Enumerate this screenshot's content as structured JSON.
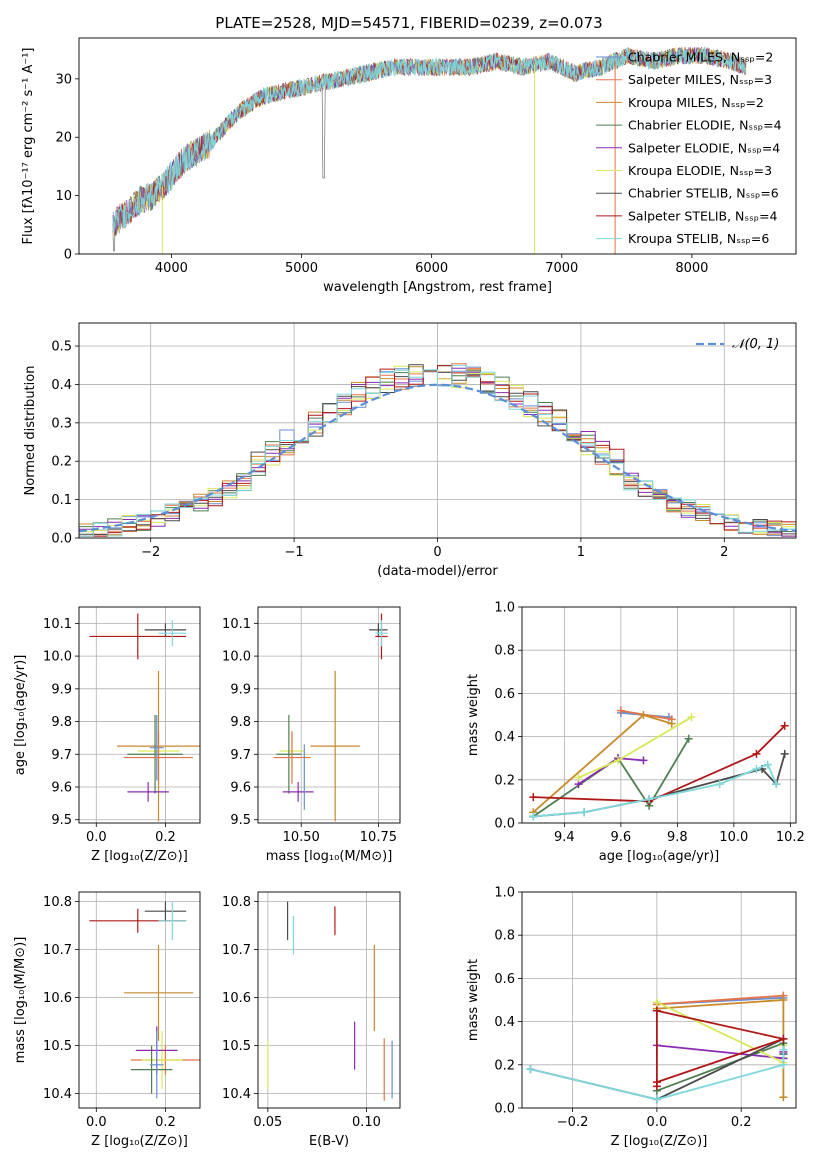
{
  "chart_data": [
    {
      "type": "line",
      "title": "PLATE=2528, MJD=54571, FIBERID=0239, z=0.073",
      "xlabel": "wavelength [Angstrom, rest frame]",
      "ylabel": "Flux [fλ10⁻¹⁷ erg cm⁻² s⁻¹ A⁻¹]",
      "xlim": [
        3290,
        8800
      ],
      "ylim": [
        0,
        37
      ],
      "xticks": [
        "4000",
        "5000",
        "6000",
        "7000",
        "8000"
      ],
      "yticks": [
        "0",
        "10",
        "20",
        "30"
      ],
      "grid": false,
      "legend": "upper-right",
      "legend_entries": [
        "Chabrier MILES, Nₛₛₚ=2",
        "Salpeter MILES, Nₛₛₚ=3",
        "Kroupa MILES, Nₛₛₚ=2",
        "Chabrier ELODIE, Nₛₛₚ=4",
        "Salpeter ELODIE, Nₛₛₚ=4",
        "Kroupa ELODIE, Nₛₛₚ=3",
        "Chabrier STELIB, Nₛₛₚ=6",
        "Salpeter STELIB, Nₛₛₚ=4",
        "Kroupa STELIB, Nₛₛₚ=6"
      ],
      "series_colors": [
        "#6a8fd1",
        "#e3744a",
        "#c98a2c",
        "#4e7f52",
        "#8b2bb0",
        "#d9e85a",
        "#4a4a4a",
        "#b01818",
        "#7fd8dc"
      ],
      "continuum": {
        "x": [
          3550,
          3650,
          3750,
          3850,
          3950,
          4050,
          4150,
          4300,
          4500,
          4700,
          4900,
          5100,
          5300,
          5500,
          5700,
          5900,
          6100,
          6300,
          6500,
          6700,
          6900,
          7100,
          7300,
          7500,
          7700,
          7900,
          8100,
          8300,
          8420
        ],
        "y": [
          5,
          7,
          9,
          10,
          12,
          15,
          17,
          19,
          24,
          27,
          28,
          29,
          30,
          31,
          32,
          32,
          32,
          32,
          33,
          32,
          33,
          31,
          32,
          34,
          33,
          34,
          34,
          33,
          32
        ]
      },
      "dips": [
        {
          "series": 5,
          "x": 3930,
          "y": 0
        },
        {
          "series": 5,
          "x": 6790,
          "y": 0
        },
        {
          "series": 1,
          "x": 7410,
          "y": 0
        }
      ]
    },
    {
      "type": "line",
      "xlabel": "(data-model)/error",
      "ylabel": "Normed distribution",
      "xlim": [
        -2.5,
        2.5
      ],
      "ylim": [
        0,
        0.56
      ],
      "xticks": [
        "−2",
        "−1",
        "0",
        "1",
        "2"
      ],
      "yticks": [
        "0.0",
        "0.1",
        "0.2",
        "0.3",
        "0.4",
        "0.5"
      ],
      "grid": true,
      "legend": "upper-right",
      "gaussian_label": "𝒩(0, 1)",
      "gaussian_color": "#5b8fd8",
      "bin_edges_start": -2.5,
      "bin_width": 0.1,
      "bin_count": 50
    },
    {
      "type": "scatter",
      "xlabel": "Z [log₁₀(Z/Z⊙)]",
      "ylabel": "age  [log₁₀(age/yr)]",
      "xlim": [
        -0.05,
        0.3
      ],
      "ylim": [
        9.49,
        10.15
      ],
      "xticks": [
        "0.0",
        "0.2"
      ],
      "yticks": [
        "9.5",
        "9.6",
        "9.7",
        "9.8",
        "9.9",
        "10.0",
        "10.1"
      ],
      "grid": true,
      "points": [
        {
          "x": 0.12,
          "y": 10.06,
          "xerr": 0.14,
          "yerr": 0.07,
          "c": 7
        },
        {
          "x": 0.2,
          "y": 10.08,
          "xerr": 0.06,
          "yerr": 0.02,
          "c": 6
        },
        {
          "x": 0.22,
          "y": 10.07,
          "xerr": 0.04,
          "yerr": 0.04,
          "c": 8
        },
        {
          "x": 0.18,
          "y": 9.725,
          "xerr": 0.12,
          "yerr": 0.23,
          "c": 2
        },
        {
          "x": 0.18,
          "y": 9.71,
          "xerr": 0.06,
          "yerr": 0.06,
          "c": 5
        },
        {
          "x": 0.17,
          "y": 9.7,
          "xerr": 0.08,
          "yerr": 0.12,
          "c": 3
        },
        {
          "x": 0.175,
          "y": 9.72,
          "xerr": 0.02,
          "yerr": 0.1,
          "c": 0
        },
        {
          "x": 0.18,
          "y": 9.69,
          "xerr": 0.1,
          "yerr": 0.08,
          "c": 1
        },
        {
          "x": 0.15,
          "y": 9.585,
          "xerr": 0.06,
          "yerr": 0.03,
          "c": 4
        }
      ]
    },
    {
      "type": "scatter",
      "xlabel": "mass [log₁₀(M/M⊙)]",
      "xlim": [
        10.36,
        10.82
      ],
      "ylim": [
        9.49,
        10.15
      ],
      "xticks": [
        "10.50",
        "10.75"
      ],
      "yticks": [
        "9.5",
        "9.6",
        "9.7",
        "9.8",
        "9.9",
        "10.0",
        "10.1"
      ],
      "grid": true,
      "points": [
        {
          "x": 10.76,
          "y": 10.06,
          "xerr": 0.02,
          "yerr": 0.07,
          "c": 7
        },
        {
          "x": 10.75,
          "y": 10.08,
          "xerr": 0.03,
          "yerr": 0.02,
          "c": 6
        },
        {
          "x": 10.76,
          "y": 10.07,
          "xerr": 0.02,
          "yerr": 0.04,
          "c": 8
        },
        {
          "x": 10.61,
          "y": 9.725,
          "xerr": 0.08,
          "yerr": 0.23,
          "c": 2
        },
        {
          "x": 10.47,
          "y": 9.71,
          "xerr": 0.04,
          "yerr": 0.06,
          "c": 5
        },
        {
          "x": 10.46,
          "y": 9.7,
          "xerr": 0.04,
          "yerr": 0.12,
          "c": 3
        },
        {
          "x": 10.47,
          "y": 9.69,
          "xerr": 0.06,
          "yerr": 0.08,
          "c": 1
        },
        {
          "x": 10.49,
          "y": 9.585,
          "xerr": 0.05,
          "yerr": 0.03,
          "c": 4
        },
        {
          "x": 10.51,
          "y": 9.63,
          "xerr": 0.0,
          "yerr": 0.1,
          "c": 0
        }
      ]
    },
    {
      "type": "line",
      "xlabel": "age  [log₁₀(age/yr)]",
      "ylabel": "mass weight",
      "xlim": [
        9.25,
        10.22
      ],
      "ylim": [
        0,
        1.0
      ],
      "xticks": [
        "9.4",
        "9.6",
        "9.8",
        "10.0",
        "10.2"
      ],
      "yticks": [
        "0.0",
        "0.2",
        "0.4",
        "0.6",
        "0.8",
        "1.0"
      ],
      "grid": true,
      "series": [
        {
          "c": 0,
          "x": [
            9.6,
            9.77
          ],
          "y": [
            0.51,
            0.49
          ]
        },
        {
          "c": 1,
          "x": [
            9.6,
            9.78
          ],
          "y": [
            0.52,
            0.48
          ]
        },
        {
          "c": 2,
          "x": [
            9.29,
            9.68,
            9.78
          ],
          "y": [
            0.05,
            0.5,
            0.46
          ]
        },
        {
          "c": 3,
          "x": [
            9.29,
            9.59,
            9.7,
            9.84
          ],
          "y": [
            0.03,
            0.3,
            0.08,
            0.39
          ]
        },
        {
          "c": 4,
          "x": [
            9.45,
            9.59,
            9.68
          ],
          "y": [
            0.18,
            0.3,
            0.29
          ]
        },
        {
          "c": 5,
          "x": [
            9.45,
            9.59,
            9.85
          ],
          "y": [
            0.21,
            0.29,
            0.49
          ]
        },
        {
          "c": 6,
          "x": [
            9.29,
            9.47,
            9.7,
            10.1,
            10.15,
            10.18
          ],
          "y": [
            0.03,
            0.05,
            0.11,
            0.25,
            0.18,
            0.32
          ]
        },
        {
          "c": 7,
          "x": [
            9.29,
            9.7,
            10.08,
            10.18
          ],
          "y": [
            0.12,
            0.1,
            0.32,
            0.45
          ]
        },
        {
          "c": 8,
          "x": [
            9.29,
            9.47,
            9.7,
            9.95,
            10.08,
            10.12,
            10.15
          ],
          "y": [
            0.03,
            0.05,
            0.11,
            0.18,
            0.25,
            0.27,
            0.18
          ]
        }
      ]
    },
    {
      "type": "scatter",
      "xlabel": "Z [log₁₀(Z/Z⊙)]",
      "ylabel": "mass [log₁₀(M/M⊙)]",
      "xlim": [
        -0.05,
        0.3
      ],
      "ylim": [
        10.37,
        10.82
      ],
      "xticks": [
        "0.0",
        "0.2"
      ],
      "yticks": [
        "10.4",
        "10.5",
        "10.6",
        "10.7",
        "10.8"
      ],
      "grid": true,
      "points": [
        {
          "x": 0.12,
          "y": 10.76,
          "xerr": 0.14,
          "yerr": 0.025,
          "c": 7
        },
        {
          "x": 0.2,
          "y": 10.78,
          "xerr": 0.06,
          "yerr": 0.02,
          "c": 6
        },
        {
          "x": 0.22,
          "y": 10.76,
          "xerr": 0.04,
          "yerr": 0.04,
          "c": 8
        },
        {
          "x": 0.18,
          "y": 10.61,
          "xerr": 0.1,
          "yerr": 0.1,
          "c": 2
        },
        {
          "x": 0.2,
          "y": 10.47,
          "xerr": 0.1,
          "yerr": 0.03,
          "c": 1
        },
        {
          "x": 0.19,
          "y": 10.47,
          "xerr": 0.06,
          "yerr": 0.06,
          "c": 5
        },
        {
          "x": 0.16,
          "y": 10.45,
          "xerr": 0.06,
          "yerr": 0.05,
          "c": 3
        },
        {
          "x": 0.175,
          "y": 10.49,
          "xerr": 0.06,
          "yerr": 0.05,
          "c": 4
        },
        {
          "x": 0.175,
          "y": 10.46,
          "xerr": 0.02,
          "yerr": 0.07,
          "c": 0
        }
      ]
    },
    {
      "type": "scatter",
      "xlabel": "E(B-V)",
      "xlim": [
        0.045,
        0.117
      ],
      "ylim": [
        10.37,
        10.82
      ],
      "xticks": [
        "0.05",
        "0.10"
      ],
      "yticks": [
        "10.4",
        "10.5",
        "10.6",
        "10.7",
        "10.8"
      ],
      "grid": true,
      "points": [
        {
          "x": 0.05,
          "y": 10.46,
          "xerr": 0,
          "yerr": 0.05,
          "c": 5
        },
        {
          "x": 0.06,
          "y": 10.76,
          "xerr": 0,
          "yerr": 0.04,
          "c": 6
        },
        {
          "x": 0.063,
          "y": 10.73,
          "xerr": 0,
          "yerr": 0.04,
          "c": 8
        },
        {
          "x": 0.084,
          "y": 10.76,
          "xerr": 0,
          "yerr": 0.03,
          "c": 7
        },
        {
          "x": 0.094,
          "y": 10.5,
          "xerr": 0,
          "yerr": 0.05,
          "c": 4
        },
        {
          "x": 0.104,
          "y": 10.62,
          "xerr": 0,
          "yerr": 0.09,
          "c": 2
        },
        {
          "x": 0.109,
          "y": 10.45,
          "xerr": 0,
          "yerr": 0.065,
          "c": 1
        },
        {
          "x": 0.113,
          "y": 10.45,
          "xerr": 0,
          "yerr": 0.06,
          "c": 0
        }
      ]
    },
    {
      "type": "line",
      "xlabel": "Z [log₁₀(Z/Z⊙)]",
      "ylabel": "mass weight",
      "xlim": [
        -0.32,
        0.33
      ],
      "ylim": [
        0,
        1.0
      ],
      "xticks": [
        "−0.2",
        "0.0",
        "0.2"
      ],
      "yticks": [
        "0.0",
        "0.2",
        "0.4",
        "0.6",
        "0.8",
        "1.0"
      ],
      "grid": true,
      "series": [
        {
          "c": 0,
          "x": [
            0.0,
            0.3
          ],
          "y": [
            0.48,
            0.51
          ]
        },
        {
          "c": 1,
          "x": [
            0.0,
            0.3
          ],
          "y": [
            0.48,
            0.52
          ]
        },
        {
          "c": 2,
          "x": [
            0.0,
            0.3,
            0.3
          ],
          "y": [
            0.46,
            0.5,
            0.05
          ]
        },
        {
          "c": 3,
          "x": [
            0.0,
            0.3,
            0.3
          ],
          "y": [
            0.08,
            0.3,
            0.23
          ]
        },
        {
          "c": 4,
          "x": [
            0.0,
            0.3,
            0.3
          ],
          "y": [
            0.29,
            0.23,
            0.26
          ]
        },
        {
          "c": 5,
          "x": [
            0.0,
            0.3,
            0.3
          ],
          "y": [
            0.49,
            0.21,
            0.29
          ]
        },
        {
          "c": 6,
          "x": [
            -0.3,
            0.0,
            0.3,
            0.3
          ],
          "y": [
            0.18,
            0.04,
            0.32,
            0.25
          ]
        },
        {
          "c": 7,
          "x": [
            0.0,
            0.0,
            0.3,
            0.0
          ],
          "y": [
            0.1,
            0.45,
            0.32,
            0.12
          ]
        },
        {
          "c": 8,
          "x": [
            -0.3,
            0.0,
            0.3,
            0.3
          ],
          "y": [
            0.18,
            0.04,
            0.2,
            0.27
          ]
        }
      ]
    }
  ]
}
